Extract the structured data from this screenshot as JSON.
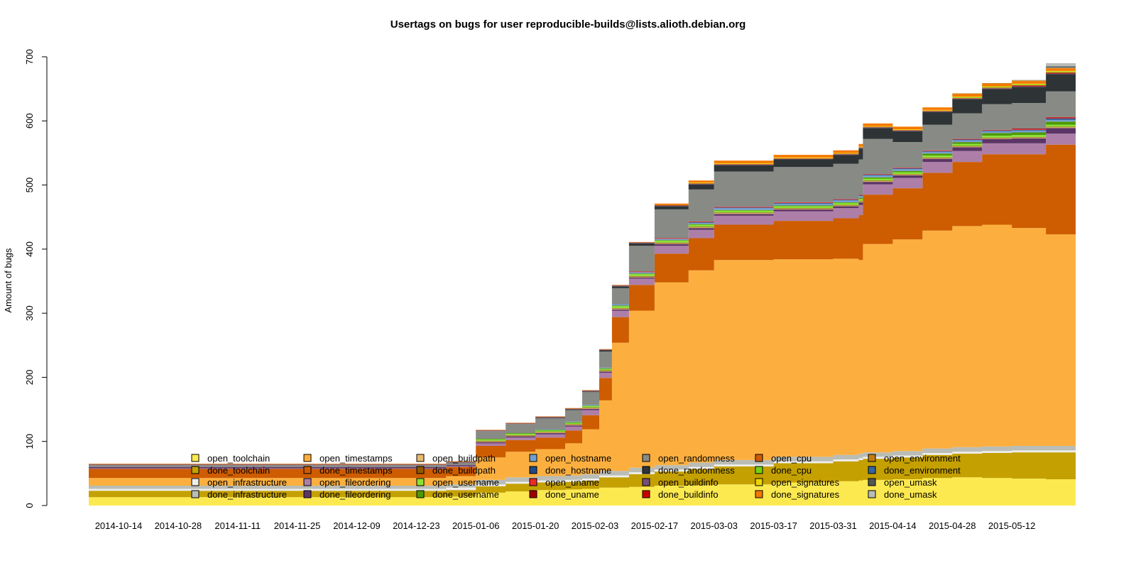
{
  "chart_data": {
    "type": "area",
    "stacked": true,
    "title": "Usertags on bugs for user reproducible-builds@lists.alioth.debian.org",
    "xlabel": "",
    "ylabel": "Amount of bugs",
    "ylim": [
      0,
      700
    ],
    "y_ticks": [
      0,
      100,
      200,
      300,
      400,
      500,
      600,
      700
    ],
    "x_start": "2014-10-07",
    "x_end": "2015-05-27",
    "x_tick_labels": [
      "2014-10-14",
      "2014-10-28",
      "2014-11-11",
      "2014-11-25",
      "2014-12-09",
      "2014-12-23",
      "2015-01-06",
      "2015-01-20",
      "2015-02-03",
      "2015-02-17",
      "2015-03-03",
      "2015-03-17",
      "2015-03-31",
      "2015-04-14",
      "2015-04-28",
      "2015-05-12"
    ],
    "grid": false,
    "legend_position": "bottom-center",
    "legend_entries": [
      "open_toolchain",
      "done_toolchain",
      "open_infrastructure",
      "done_infrastructure",
      "open_timestamps",
      "done_timestamps",
      "open_fileordering",
      "done_fileordering",
      "open_buildpath",
      "done_buildpath",
      "open_username",
      "done_username",
      "open_hostname",
      "done_hostname",
      "open_uname",
      "done_uname",
      "open_randomness",
      "done_randomness",
      "open_buildinfo",
      "done_buildinfo",
      "open_cpu",
      "done_cpu",
      "open_signatures",
      "done_signatures",
      "open_environment",
      "done_environment",
      "open_umask",
      "done_umask"
    ],
    "legend_colors": [
      "#fce94f",
      "#c4a000",
      "#eeeeec",
      "#babdb6",
      "#fcaf3e",
      "#ce5c00",
      "#ad7fa8",
      "#5c3566",
      "#e9b96e",
      "#8f5902",
      "#8ae234",
      "#4e9a06",
      "#729fcf",
      "#204a87",
      "#ef2929",
      "#a40000",
      "#888a85",
      "#2e3436",
      "#75507b",
      "#cc0000",
      "#ce5c00",
      "#73d216",
      "#edd400",
      "#f57900",
      "#c17d11",
      "#3465a4",
      "#555753",
      "#babdb6"
    ],
    "x": [
      "2014-10-07",
      "2014-10-21",
      "2014-11-04",
      "2014-11-18",
      "2014-12-02",
      "2014-12-16",
      "2014-12-23",
      "2014-12-30",
      "2015-01-06",
      "2015-01-13",
      "2015-01-20",
      "2015-01-27",
      "2015-01-31",
      "2015-02-04",
      "2015-02-07",
      "2015-02-11",
      "2015-02-17",
      "2015-02-25",
      "2015-03-03",
      "2015-03-17",
      "2015-03-31",
      "2015-04-06",
      "2015-04-07",
      "2015-04-14",
      "2015-04-21",
      "2015-04-28",
      "2015-05-05",
      "2015-05-12",
      "2015-05-20",
      "2015-05-27"
    ],
    "series": [
      {
        "name": "open_toolchain",
        "values": [
          13,
          13,
          13,
          13,
          13,
          13,
          13,
          14,
          20,
          22,
          24,
          25,
          26,
          28,
          28,
          29,
          31,
          32,
          33,
          36,
          38,
          39,
          40,
          41,
          43,
          44,
          43,
          42,
          41,
          40
        ]
      },
      {
        "name": "done_toolchain",
        "values": [
          10,
          10,
          10,
          10,
          10,
          10,
          10,
          10,
          10,
          12,
          12,
          12,
          13,
          16,
          16,
          20,
          22,
          25,
          28,
          30,
          31,
          32,
          33,
          34,
          36,
          37,
          39,
          41,
          42,
          44
        ]
      },
      {
        "name": "open_infrastructure",
        "values": [
          3,
          3,
          3,
          3,
          3,
          3,
          3,
          4,
          3,
          3,
          3,
          3,
          3,
          3,
          3,
          3,
          3,
          3,
          3,
          3,
          3,
          3,
          3,
          3,
          3,
          3,
          3,
          3,
          3,
          3
        ]
      },
      {
        "name": "done_infrastructure",
        "values": [
          5,
          5,
          5,
          5,
          5,
          5,
          5,
          5,
          7,
          7,
          7,
          7,
          7,
          7,
          7,
          7,
          7,
          7,
          7,
          7,
          7,
          7,
          7,
          7,
          7,
          7,
          7,
          7,
          7,
          7
        ]
      },
      {
        "name": "open_timestamps",
        "values": [
          12,
          12,
          12,
          12,
          12,
          12,
          12,
          13,
          35,
          40,
          42,
          50,
          70,
          110,
          200,
          245,
          285,
          300,
          312,
          308,
          306,
          302,
          325,
          330,
          340,
          345,
          346,
          340,
          330,
          335
        ]
      },
      {
        "name": "done_timestamps",
        "values": [
          14,
          14,
          14,
          14,
          14,
          14,
          14,
          14,
          18,
          18,
          18,
          20,
          22,
          35,
          40,
          40,
          45,
          50,
          55,
          60,
          63,
          70,
          77,
          80,
          90,
          100,
          110,
          115,
          140,
          145
        ]
      },
      {
        "name": "open_fileordering",
        "values": [
          1,
          1,
          1,
          1,
          1,
          1,
          1,
          1,
          4,
          4,
          5,
          6,
          8,
          8,
          10,
          10,
          12,
          13,
          14,
          15,
          16,
          16,
          16,
          16,
          17,
          17,
          17,
          17,
          17,
          17
        ]
      },
      {
        "name": "done_fileordering",
        "values": [
          2,
          2,
          2,
          2,
          2,
          2,
          2,
          2,
          2,
          2,
          2,
          2,
          2,
          2,
          2,
          2,
          3,
          3,
          3,
          3,
          3,
          4,
          4,
          4,
          5,
          6,
          7,
          8,
          9,
          10
        ]
      },
      {
        "name": "open_buildpath",
        "values": [
          0,
          0,
          0,
          0,
          0,
          0,
          0,
          0,
          1,
          1,
          1,
          1,
          1,
          1,
          1,
          1,
          1,
          1,
          1,
          1,
          1,
          1,
          1,
          1,
          1,
          1,
          1,
          1,
          1,
          1
        ]
      },
      {
        "name": "done_buildpath",
        "values": [
          0,
          0,
          0,
          0,
          0,
          0,
          0,
          0,
          1,
          1,
          1,
          1,
          1,
          1,
          1,
          1,
          1,
          1,
          1,
          1,
          1,
          1,
          1,
          1,
          1,
          1,
          1,
          1,
          1,
          1
        ]
      },
      {
        "name": "open_username",
        "values": [
          0,
          0,
          0,
          0,
          0,
          0,
          0,
          0,
          2,
          2,
          2,
          2,
          2,
          2,
          3,
          3,
          3,
          3,
          3,
          3,
          3,
          3,
          3,
          3,
          3,
          3,
          3,
          3,
          3,
          3
        ]
      },
      {
        "name": "done_username",
        "values": [
          0,
          0,
          0,
          0,
          0,
          0,
          0,
          0,
          1,
          1,
          1,
          1,
          1,
          1,
          1,
          1,
          1,
          1,
          1,
          1,
          1,
          2,
          2,
          2,
          3,
          3,
          4,
          4,
          5,
          5
        ]
      },
      {
        "name": "open_hostname",
        "values": [
          0,
          0,
          0,
          0,
          0,
          0,
          0,
          0,
          0,
          0,
          1,
          1,
          1,
          1,
          2,
          2,
          2,
          2,
          3,
          3,
          3,
          3,
          3,
          3,
          3,
          3,
          3,
          3,
          3,
          3
        ]
      },
      {
        "name": "done_hostname",
        "values": [
          0,
          0,
          0,
          0,
          0,
          0,
          0,
          0,
          0,
          0,
          0,
          0,
          0,
          0,
          0,
          0,
          0,
          1,
          1,
          1,
          1,
          1,
          1,
          1,
          1,
          1,
          1,
          1,
          2,
          2
        ]
      },
      {
        "name": "open_uname",
        "values": [
          0,
          0,
          0,
          0,
          0,
          0,
          0,
          0,
          0,
          0,
          0,
          0,
          0,
          0,
          0,
          1,
          1,
          1,
          1,
          1,
          1,
          1,
          1,
          1,
          1,
          1,
          1,
          1,
          1,
          1
        ]
      },
      {
        "name": "done_uname",
        "values": [
          0,
          0,
          0,
          0,
          0,
          0,
          0,
          0,
          0,
          0,
          0,
          0,
          0,
          0,
          0,
          0,
          0,
          0,
          0,
          0,
          0,
          0,
          0,
          0,
          0,
          0,
          0,
          1,
          1,
          1
        ]
      },
      {
        "name": "open_randomness",
        "values": [
          3,
          3,
          3,
          3,
          3,
          3,
          3,
          4,
          12,
          14,
          17,
          18,
          20,
          25,
          25,
          40,
          45,
          50,
          55,
          55,
          55,
          55,
          55,
          40,
          40,
          40,
          40,
          40,
          40,
          40
        ]
      },
      {
        "name": "done_randomness",
        "values": [
          0,
          0,
          0,
          0,
          0,
          0,
          0,
          0,
          0,
          0,
          1,
          1,
          1,
          2,
          3,
          4,
          5,
          8,
          10,
          12,
          14,
          17,
          17,
          17,
          20,
          22,
          24,
          25,
          27,
          28
        ]
      },
      {
        "name": "open_buildinfo",
        "values": [
          1,
          1,
          1,
          1,
          1,
          1,
          1,
          1,
          1,
          1,
          1,
          1,
          1,
          1,
          1,
          1,
          1,
          1,
          1,
          1,
          1,
          1,
          1,
          1,
          1,
          1,
          1,
          1,
          1,
          1
        ]
      },
      {
        "name": "done_buildinfo",
        "values": [
          0,
          0,
          0,
          0,
          0,
          0,
          0,
          0,
          0,
          0,
          0,
          0,
          0,
          0,
          0,
          0,
          0,
          0,
          0,
          0,
          0,
          0,
          0,
          0,
          0,
          0,
          0,
          1,
          1,
          1
        ]
      },
      {
        "name": "open_cpu",
        "values": [
          1,
          1,
          1,
          1,
          1,
          1,
          1,
          1,
          1,
          1,
          1,
          1,
          1,
          1,
          1,
          1,
          1,
          1,
          1,
          1,
          1,
          1,
          1,
          1,
          1,
          1,
          1,
          1,
          1,
          1
        ]
      },
      {
        "name": "done_cpu",
        "values": [
          0,
          0,
          0,
          0,
          0,
          0,
          0,
          0,
          0,
          0,
          0,
          0,
          0,
          0,
          0,
          0,
          0,
          0,
          0,
          0,
          0,
          0,
          0,
          0,
          0,
          1,
          1,
          1,
          1,
          1
        ]
      },
      {
        "name": "open_signatures",
        "values": [
          0,
          0,
          0,
          0,
          0,
          0,
          0,
          0,
          0,
          0,
          0,
          0,
          0,
          0,
          0,
          0,
          0,
          1,
          1,
          1,
          1,
          1,
          1,
          1,
          1,
          1,
          1,
          1,
          1,
          1
        ]
      },
      {
        "name": "done_signatures",
        "values": [
          0,
          0,
          0,
          0,
          0,
          0,
          0,
          0,
          0,
          0,
          0,
          0,
          0,
          0,
          0,
          0,
          2,
          3,
          4,
          4,
          4,
          4,
          4,
          4,
          4,
          4,
          4,
          4,
          4,
          4
        ]
      },
      {
        "name": "open_environment",
        "values": [
          0,
          0,
          0,
          0,
          0,
          0,
          0,
          0,
          0,
          0,
          0,
          0,
          0,
          0,
          0,
          0,
          0,
          0,
          0,
          0,
          0,
          0,
          0,
          0,
          0,
          1,
          1,
          1,
          1,
          1
        ]
      },
      {
        "name": "done_environment",
        "values": [
          0,
          0,
          0,
          0,
          0,
          0,
          0,
          0,
          0,
          0,
          0,
          0,
          0,
          0,
          0,
          0,
          0,
          0,
          0,
          0,
          0,
          0,
          0,
          0,
          0,
          0,
          0,
          0,
          1,
          1
        ]
      },
      {
        "name": "open_umask",
        "values": [
          0,
          0,
          0,
          0,
          0,
          0,
          0,
          0,
          0,
          0,
          0,
          0,
          0,
          0,
          0,
          0,
          0,
          0,
          0,
          0,
          0,
          0,
          0,
          0,
          0,
          0,
          0,
          0,
          1,
          1
        ]
      },
      {
        "name": "done_umask",
        "values": [
          0,
          0,
          0,
          0,
          0,
          0,
          0,
          0,
          0,
          0,
          0,
          0,
          0,
          0,
          0,
          0,
          0,
          0,
          0,
          0,
          0,
          0,
          0,
          0,
          0,
          0,
          0,
          1,
          5,
          8
        ]
      }
    ]
  }
}
